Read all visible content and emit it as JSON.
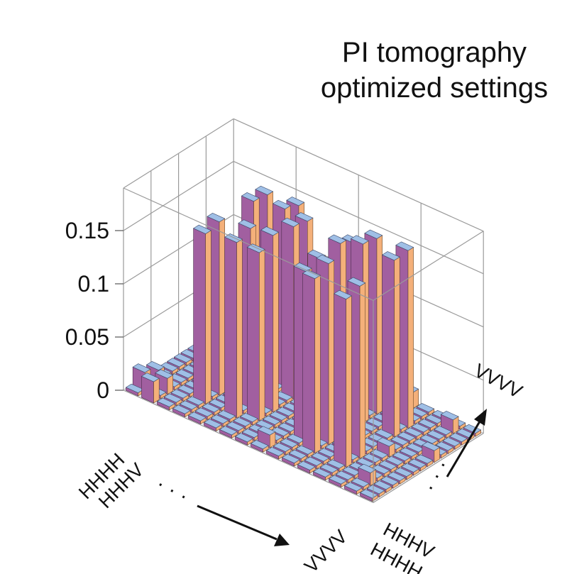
{
  "chart_data": {
    "type": "bar3d",
    "title_lines": [
      "PI tomography",
      "optimized settings"
    ],
    "z_ticks": [
      "0",
      "0.05",
      "0.1",
      "0.15"
    ],
    "z_tick_values": [
      0,
      0.05,
      0.1,
      0.15
    ],
    "zlim": [
      0,
      0.19
    ],
    "grid_size": 16,
    "x_axis_labels": {
      "first": "HHHH",
      "second": "HHHV",
      "last": "VVVV",
      "ellipsis": "· · ·"
    },
    "y_axis_labels": {
      "first": "HHHH",
      "second": "HHHV",
      "last": "VVVV",
      "ellipsis": "· · ·"
    },
    "bar_colors": {
      "front": "#a15fa0",
      "side": "#f4b07a",
      "top": "#9fbfe6"
    },
    "tall_bars": [
      {
        "i": 3,
        "j": 3,
        "value": 0.16
      },
      {
        "i": 3,
        "j": 5,
        "value": 0.163
      },
      {
        "i": 3,
        "j": 10,
        "value": 0.162
      },
      {
        "i": 3,
        "j": 12,
        "value": 0.16
      },
      {
        "i": 5,
        "j": 3,
        "value": 0.165
      },
      {
        "i": 5,
        "j": 5,
        "value": 0.17
      },
      {
        "i": 5,
        "j": 10,
        "value": 0.168
      },
      {
        "i": 5,
        "j": 12,
        "value": 0.163
      },
      {
        "i": 6,
        "j": 4,
        "value": 0.158
      },
      {
        "i": 6,
        "j": 6,
        "value": 0.166
      },
      {
        "i": 6,
        "j": 9,
        "value": 0.162
      },
      {
        "i": 6,
        "j": 11,
        "value": 0.159
      },
      {
        "i": 9,
        "j": 4,
        "value": 0.16
      },
      {
        "i": 9,
        "j": 6,
        "value": 0.164
      },
      {
        "i": 9,
        "j": 9,
        "value": 0.166
      },
      {
        "i": 9,
        "j": 11,
        "value": 0.158
      },
      {
        "i": 10,
        "j": 3,
        "value": 0.164
      },
      {
        "i": 10,
        "j": 5,
        "value": 0.17
      },
      {
        "i": 10,
        "j": 10,
        "value": 0.168
      },
      {
        "i": 10,
        "j": 12,
        "value": 0.165
      },
      {
        "i": 12,
        "j": 3,
        "value": 0.158
      },
      {
        "i": 12,
        "j": 5,
        "value": 0.162
      },
      {
        "i": 12,
        "j": 10,
        "value": 0.166
      },
      {
        "i": 12,
        "j": 12,
        "value": 0.167
      }
    ],
    "small_bars": [
      {
        "i": 0,
        "j": 1,
        "value": 0.018
      },
      {
        "i": 0,
        "j": 3,
        "value": 0.012
      },
      {
        "i": 1,
        "j": 0,
        "value": 0.02
      },
      {
        "i": 1,
        "j": 2,
        "value": 0.015
      },
      {
        "i": 2,
        "j": 6,
        "value": 0.01
      },
      {
        "i": 2,
        "j": 13,
        "value": 0.012
      },
      {
        "i": 4,
        "j": 8,
        "value": 0.01
      },
      {
        "i": 7,
        "j": 14,
        "value": 0.014
      },
      {
        "i": 8,
        "j": 1,
        "value": 0.012
      },
      {
        "i": 11,
        "j": 15,
        "value": 0.015
      },
      {
        "i": 13,
        "j": 7,
        "value": 0.01
      },
      {
        "i": 14,
        "j": 2,
        "value": 0.012
      },
      {
        "i": 14,
        "j": 14,
        "value": 0.013
      },
      {
        "i": 15,
        "j": 9,
        "value": 0.011
      }
    ],
    "background_value": 0.003,
    "grid": true
  }
}
